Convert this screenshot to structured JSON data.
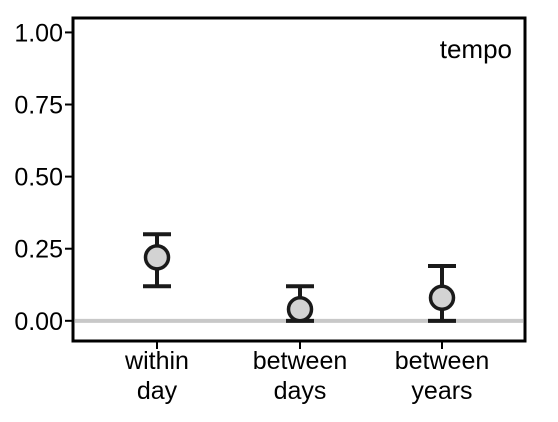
{
  "chart_data": {
    "type": "scatter",
    "panel_label": "tempo",
    "categories": [
      [
        "within",
        "day"
      ],
      [
        "between",
        "days"
      ],
      [
        "between",
        "years"
      ]
    ],
    "points": [
      {
        "category": "within day",
        "value": 0.22,
        "lower": 0.12,
        "upper": 0.3
      },
      {
        "category": "between days",
        "value": 0.04,
        "lower": 0.0,
        "upper": 0.12
      },
      {
        "category": "between years",
        "value": 0.08,
        "lower": 0.0,
        "upper": 0.19
      }
    ],
    "yticks": [
      "0.00",
      "0.25",
      "0.50",
      "0.75",
      "1.00"
    ],
    "ylim": [
      -0.07,
      1.05
    ],
    "reference_line": 0.0,
    "xlabel": "",
    "ylabel": "",
    "grid": false,
    "colors": {
      "point_fill": "#d3d3d3",
      "point_stroke": "#1a1a1a",
      "errorbar": "#1a1a1a",
      "reference_line": "#c8c8c8",
      "frame": "#000000"
    }
  }
}
